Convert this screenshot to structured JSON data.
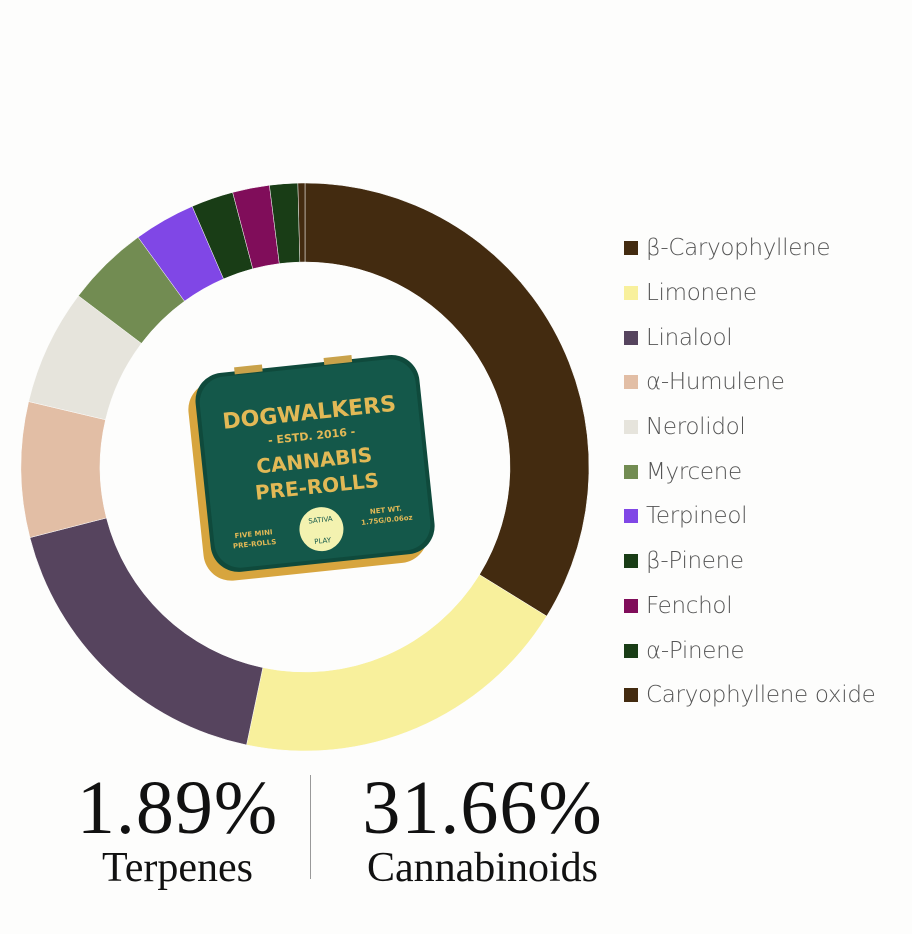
{
  "chart_data": {
    "type": "donut",
    "title": "",
    "legend_position": "right",
    "series": [
      {
        "name": "β-Caryophyllene",
        "share_pct": 33.8,
        "color": "#432b10"
      },
      {
        "name": "Limonene",
        "share_pct": 19.5,
        "color": "#f8f09c"
      },
      {
        "name": "Linalool",
        "share_pct": 17.7,
        "color": "#56445e"
      },
      {
        "name": "α-Humulene",
        "share_pct": 7.7,
        "color": "#e2bea5"
      },
      {
        "name": "Nerolidol",
        "share_pct": 6.6,
        "color": "#e6e4dc"
      },
      {
        "name": "Myrcene",
        "share_pct": 4.7,
        "color": "#728c52"
      },
      {
        "name": "Terpineol",
        "share_pct": 3.5,
        "color": "#8047e6"
      },
      {
        "name": "β-Pinene",
        "share_pct": 2.4,
        "color": "#193d16"
      },
      {
        "name": "Fenchol",
        "share_pct": 2.1,
        "color": "#800d5a"
      },
      {
        "name": "α-Pinene",
        "share_pct": 1.6,
        "color": "#193d16"
      },
      {
        "name": "Caryophyllene oxide",
        "share_pct": 0.4,
        "color": "#432b10"
      }
    ]
  },
  "product_image": {
    "brand": "DOGWALKERS",
    "established": "- ESTD. 2016 -",
    "line1": "CANNABIS",
    "line2": "PRE-ROLLS",
    "left_note": [
      "FIVE MINI",
      "PRE-ROLLS"
    ],
    "right_note": [
      "NET WT.",
      "1.75G/0.06oz"
    ],
    "badge": [
      "SATIVA",
      "PLAY"
    ]
  },
  "stats": {
    "terpenes": {
      "value": "1.89%",
      "label": "Terpenes"
    },
    "cannabinoids": {
      "value": "31.66%",
      "label": "Cannabinoids"
    }
  }
}
